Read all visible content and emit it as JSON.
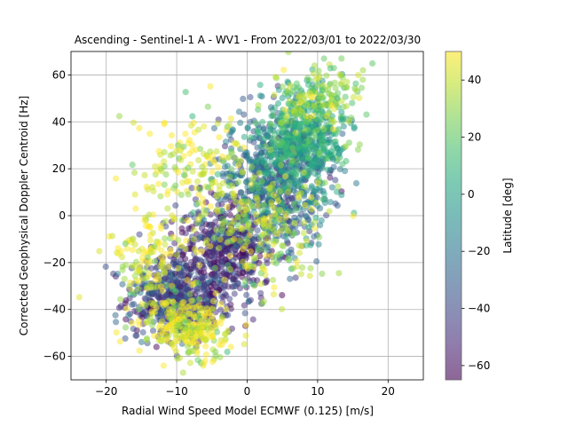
{
  "chart_data": {
    "type": "scatter",
    "title": "Ascending - Sentinel-1 A - WV1 - From 2022/03/01 to 2022/03/30",
    "xlabel": "Radial Wind Speed Model ECMWF (0.125) [m/s]",
    "ylabel": "Corrected Geophysical Doppler Centroid [Hz]",
    "xlim": [
      -25,
      25
    ],
    "ylim": [
      -70,
      70
    ],
    "xticks": [
      -20,
      -10,
      0,
      10,
      20
    ],
    "yticks": [
      -60,
      -40,
      -20,
      0,
      20,
      40,
      60
    ],
    "grid": true,
    "colorbar": {
      "label": "Latitude [deg]",
      "range": [
        -65,
        50
      ],
      "ticks": [
        -60,
        -40,
        -20,
        0,
        20,
        40
      ],
      "colormap": "viridis"
    },
    "point_alpha": 0.5,
    "clusters": [
      {
        "x_center": -10,
        "y_center": -35,
        "x_spread": 3.5,
        "y_spread": 9,
        "lat_mean": -40,
        "n": 520
      },
      {
        "x_center": -3,
        "y_center": -15,
        "x_spread": 3.5,
        "y_spread": 12,
        "lat_mean": -50,
        "n": 480
      },
      {
        "x_center": 4,
        "y_center": 15,
        "x_spread": 4,
        "y_spread": 14,
        "lat_mean": -25,
        "n": 620
      },
      {
        "x_center": 8,
        "y_center": 32,
        "x_spread": 3,
        "y_spread": 10,
        "lat_mean": 5,
        "n": 520
      },
      {
        "x_center": -8,
        "y_center": -48,
        "x_spread": 3,
        "y_spread": 6,
        "lat_mean": 45,
        "n": 260
      },
      {
        "x_center": -13,
        "y_center": -20,
        "x_spread": 3,
        "y_spread": 10,
        "lat_mean": 42,
        "n": 140
      },
      {
        "x_center": 2,
        "y_center": -5,
        "x_spread": 4,
        "y_spread": 14,
        "lat_mean": 35,
        "n": 220
      },
      {
        "x_center": -8,
        "y_center": 20,
        "x_spread": 4,
        "y_spread": 14,
        "lat_mean": 45,
        "n": 160
      },
      {
        "x_center": 10,
        "y_center": 50,
        "x_spread": 3,
        "y_spread": 8,
        "lat_mean": 30,
        "n": 160
      }
    ]
  }
}
